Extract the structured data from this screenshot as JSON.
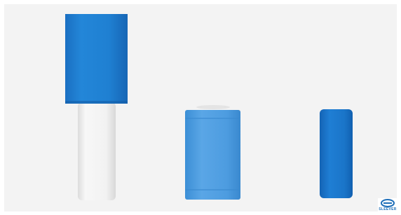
{
  "logo": {
    "text": "SLEEVER"
  }
}
